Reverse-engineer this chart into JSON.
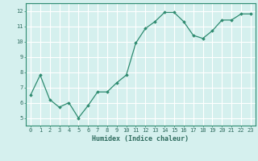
{
  "x": [
    0,
    1,
    2,
    3,
    4,
    5,
    6,
    7,
    8,
    9,
    10,
    11,
    12,
    13,
    14,
    15,
    16,
    17,
    18,
    19,
    20,
    21,
    22,
    23
  ],
  "y": [
    6.5,
    7.8,
    6.2,
    5.7,
    6.0,
    5.0,
    5.8,
    6.7,
    6.7,
    7.3,
    7.8,
    9.9,
    10.85,
    11.3,
    11.9,
    11.9,
    11.3,
    10.4,
    10.2,
    10.7,
    11.4,
    11.4,
    11.8,
    11.8
  ],
  "xlabel": "Humidex (Indice chaleur)",
  "ylim": [
    4.5,
    12.5
  ],
  "xlim": [
    -0.5,
    23.5
  ],
  "yticks": [
    5,
    6,
    7,
    8,
    9,
    10,
    11,
    12
  ],
  "xticks": [
    0,
    1,
    2,
    3,
    4,
    5,
    6,
    7,
    8,
    9,
    10,
    11,
    12,
    13,
    14,
    15,
    16,
    17,
    18,
    19,
    20,
    21,
    22,
    23
  ],
  "line_color": "#2e8b70",
  "marker": "D",
  "marker_size": 1.8,
  "bg_color": "#d5f0ee",
  "grid_color": "#ffffff",
  "axis_color": "#2e8b70",
  "label_color": "#2e6b5e",
  "font_family": "monospace",
  "tick_fontsize": 5.0,
  "xlabel_fontsize": 6.0
}
